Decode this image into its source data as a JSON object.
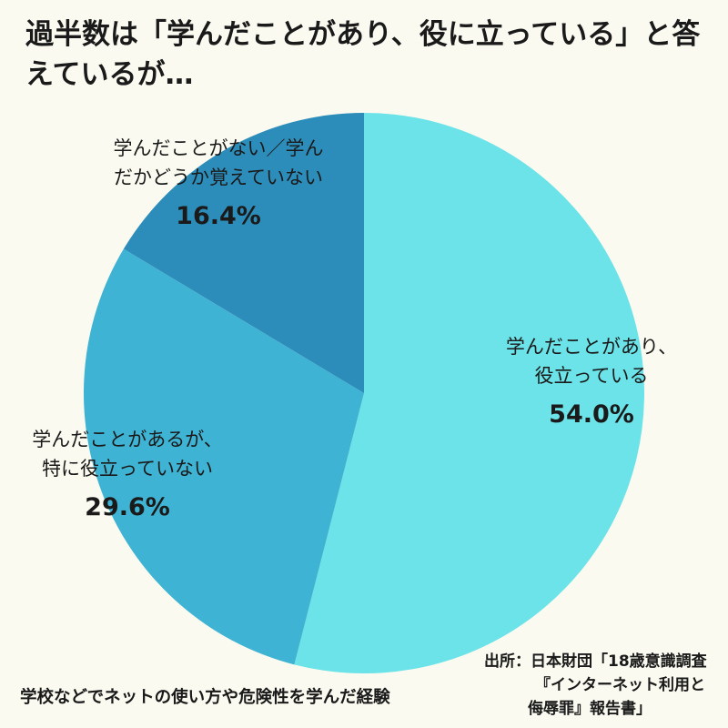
{
  "title": "過半数は「学んだことがあり、役に立っている」と答えているが…",
  "caption": "学校などでネットの使い方や危険性を学んだ経験",
  "source": {
    "line1": "出所：日本財団「18歳意識調査",
    "line2": "『インターネット利用と",
    "line3": "侮辱罪』報告書」"
  },
  "chart_data": {
    "type": "pie",
    "title": "過半数は「学んだことがあり、役に立っている」と答えているが…",
    "slices": [
      {
        "label_lines": [
          "学んだことがあり、",
          "役立っている"
        ],
        "value": 54.0,
        "value_label": "54.0%",
        "color": "#6be3e8"
      },
      {
        "label_lines": [
          "学んだことがあるが、",
          "特に役立っていない"
        ],
        "value": 29.6,
        "value_label": "29.6%",
        "color": "#3fb3d3"
      },
      {
        "label_lines": [
          "学んだことがない／学ん",
          "だかどうか覚えていない"
        ],
        "value": 16.4,
        "value_label": "16.4%",
        "color": "#2c8dba"
      }
    ],
    "start_angle": "12 o'clock",
    "direction": "clockwise",
    "legend": "none"
  }
}
